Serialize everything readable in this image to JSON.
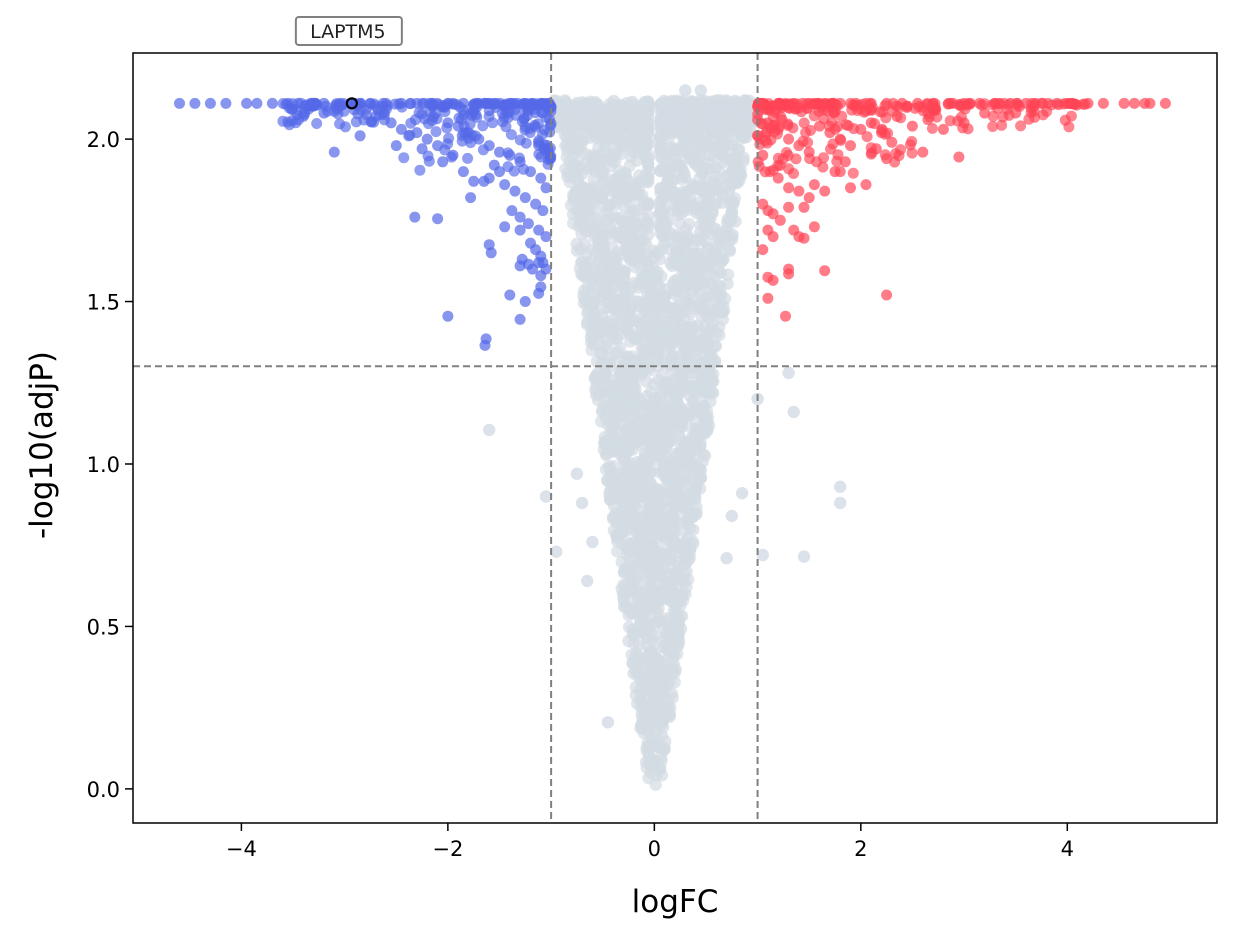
{
  "chart_data": {
    "type": "scatter",
    "subtype": "volcano",
    "xlabel": "logFC",
    "ylabel": "-log10(adjP)",
    "xlim": [
      -5.05,
      5.45
    ],
    "ylim": [
      -0.105,
      2.265
    ],
    "xticks": [
      -4,
      -2,
      0,
      2,
      4
    ],
    "xtick_labels": [
      "−4",
      "−2",
      "0",
      "2",
      "4"
    ],
    "yticks": [
      0.0,
      0.5,
      1.0,
      1.5,
      2.0
    ],
    "ytick_labels": [
      "0.0",
      "0.5",
      "1.0",
      "1.5",
      "2.0"
    ],
    "thresholds": {
      "logFC": [
        -1,
        1
      ],
      "neg_log10_adjP": 1.301
    },
    "colors": {
      "down": "#5468e8",
      "up": "#ff4455",
      "ns": "#d3dbe3",
      "threshold": "#808080"
    },
    "annotation": {
      "label": "LAPTM5",
      "x": -2.93,
      "y": 2.11
    },
    "series": [
      {
        "name": "down",
        "color": "#5468e8",
        "points": [
          [
            -4.6,
            2.11
          ],
          [
            -4.45,
            2.11
          ],
          [
            -4.3,
            2.11
          ],
          [
            -4.15,
            2.11
          ],
          [
            -3.95,
            2.11
          ],
          [
            -3.85,
            2.11
          ],
          [
            -3.7,
            2.11
          ],
          [
            -3.55,
            2.11
          ],
          [
            -3.45,
            2.11
          ],
          [
            -3.3,
            2.11
          ],
          [
            -3.2,
            2.11
          ],
          [
            -3.05,
            2.11
          ],
          [
            -2.9,
            2.11
          ],
          [
            -2.75,
            2.11
          ],
          [
            -2.6,
            2.11
          ],
          [
            -2.45,
            2.11
          ],
          [
            -2.3,
            2.11
          ],
          [
            -2.15,
            2.11
          ],
          [
            -2.0,
            2.11
          ],
          [
            -1.85,
            2.11
          ],
          [
            -1.7,
            2.11
          ],
          [
            -1.55,
            2.11
          ],
          [
            -1.4,
            2.11
          ],
          [
            -1.25,
            2.11
          ],
          [
            -1.1,
            2.11
          ],
          [
            -3.4,
            2.07
          ],
          [
            -3.2,
            2.08
          ],
          [
            -2.7,
            2.07
          ],
          [
            -2.55,
            2.05
          ],
          [
            -2.45,
            2.03
          ],
          [
            -2.3,
            2.02
          ],
          [
            -2.2,
            2.0
          ],
          [
            -2.1,
            1.98
          ],
          [
            -2.0,
            2.05
          ],
          [
            -1.9,
            2.04
          ],
          [
            -1.8,
            2.02
          ],
          [
            -1.7,
            2.0
          ],
          [
            -1.6,
            1.98
          ],
          [
            -1.5,
            1.96
          ],
          [
            -1.4,
            1.95
          ],
          [
            -1.3,
            1.93
          ],
          [
            -1.2,
            1.9
          ],
          [
            -1.1,
            1.88
          ],
          [
            -1.05,
            1.85
          ],
          [
            -3.1,
            1.96
          ],
          [
            -2.85,
            2.01
          ],
          [
            -2.5,
            1.98
          ],
          [
            -2.25,
            1.97
          ],
          [
            -2.05,
            1.93
          ],
          [
            -1.95,
            1.95
          ],
          [
            -1.85,
            1.9
          ],
          [
            -1.75,
            1.87
          ],
          [
            -1.65,
            1.87
          ],
          [
            -1.55,
            1.92
          ],
          [
            -1.45,
            1.86
          ],
          [
            -1.35,
            1.84
          ],
          [
            -1.25,
            1.82
          ],
          [
            -1.15,
            1.8
          ],
          [
            -1.08,
            1.78
          ],
          [
            -1.78,
            1.82
          ],
          [
            -1.6,
            1.88
          ],
          [
            -1.5,
            1.9
          ],
          [
            -1.38,
            1.78
          ],
          [
            -1.3,
            1.76
          ],
          [
            -1.22,
            1.74
          ],
          [
            -1.12,
            1.72
          ],
          [
            -1.05,
            1.7
          ],
          [
            -2.32,
            1.76
          ],
          [
            -2.1,
            1.755
          ],
          [
            -1.45,
            1.73
          ],
          [
            -1.3,
            1.72
          ],
          [
            -1.2,
            1.68
          ],
          [
            -1.15,
            1.66
          ],
          [
            -1.1,
            1.64
          ],
          [
            -1.08,
            1.62
          ],
          [
            -1.05,
            1.6
          ],
          [
            -1.6,
            1.675
          ],
          [
            -1.58,
            1.65
          ],
          [
            -1.28,
            1.63
          ],
          [
            -1.3,
            1.61
          ],
          [
            -1.22,
            1.615
          ],
          [
            -1.18,
            1.6
          ],
          [
            -1.12,
            1.62
          ],
          [
            -1.1,
            1.58
          ],
          [
            -1.1,
            1.545
          ],
          [
            -1.12,
            1.525
          ],
          [
            -1.4,
            1.52
          ],
          [
            -1.25,
            1.5
          ],
          [
            -2.0,
            1.455
          ],
          [
            -1.3,
            1.445
          ],
          [
            -1.63,
            1.385
          ],
          [
            -1.64,
            1.365
          ],
          [
            -2.93,
            2.11
          ]
        ]
      },
      {
        "name": "up",
        "color": "#ff4455",
        "points": [
          [
            1.05,
            2.11
          ],
          [
            1.2,
            2.11
          ],
          [
            1.35,
            2.11
          ],
          [
            1.5,
            2.11
          ],
          [
            1.65,
            2.11
          ],
          [
            1.8,
            2.11
          ],
          [
            1.95,
            2.11
          ],
          [
            2.1,
            2.11
          ],
          [
            2.25,
            2.11
          ],
          [
            2.4,
            2.11
          ],
          [
            2.55,
            2.11
          ],
          [
            2.7,
            2.11
          ],
          [
            2.85,
            2.11
          ],
          [
            3.0,
            2.11
          ],
          [
            3.15,
            2.11
          ],
          [
            3.3,
            2.11
          ],
          [
            3.45,
            2.11
          ],
          [
            3.6,
            2.11
          ],
          [
            3.75,
            2.11
          ],
          [
            3.9,
            2.11
          ],
          [
            4.05,
            2.11
          ],
          [
            4.2,
            2.11
          ],
          [
            4.35,
            2.11
          ],
          [
            4.55,
            2.11
          ],
          [
            4.65,
            2.11
          ],
          [
            4.75,
            2.11
          ],
          [
            4.8,
            2.11
          ],
          [
            4.95,
            2.11
          ],
          [
            1.1,
            2.05
          ],
          [
            1.2,
            2.03
          ],
          [
            1.3,
            2.0
          ],
          [
            1.4,
            1.98
          ],
          [
            1.5,
            1.96
          ],
          [
            1.6,
            2.04
          ],
          [
            1.7,
            2.02
          ],
          [
            1.8,
            2.0
          ],
          [
            1.9,
            1.98
          ],
          [
            2.0,
            2.03
          ],
          [
            2.1,
            2.05
          ],
          [
            2.2,
            2.02
          ],
          [
            2.35,
            2.07
          ],
          [
            2.5,
            2.04
          ],
          [
            2.65,
            2.06
          ],
          [
            2.8,
            2.03
          ],
          [
            3.0,
            2.05
          ],
          [
            3.2,
            2.08
          ],
          [
            3.5,
            2.08
          ],
          [
            1.05,
            1.95
          ],
          [
            1.12,
            1.9
          ],
          [
            1.2,
            1.88
          ],
          [
            1.3,
            1.85
          ],
          [
            1.4,
            1.84
          ],
          [
            1.55,
            1.86
          ],
          [
            1.65,
            1.84
          ],
          [
            1.75,
            1.9
          ],
          [
            1.85,
            1.93
          ],
          [
            1.9,
            1.85
          ],
          [
            2.05,
            1.86
          ],
          [
            2.15,
            1.97
          ],
          [
            2.25,
            1.94
          ],
          [
            2.3,
            1.99
          ],
          [
            2.6,
            1.96
          ],
          [
            2.95,
            1.945
          ],
          [
            1.05,
            1.8
          ],
          [
            1.1,
            1.78
          ],
          [
            1.15,
            1.77
          ],
          [
            1.22,
            1.75
          ],
          [
            1.3,
            1.79
          ],
          [
            1.45,
            1.79
          ],
          [
            1.5,
            1.82
          ],
          [
            1.8,
            1.9
          ],
          [
            1.1,
            1.72
          ],
          [
            1.15,
            1.7
          ],
          [
            1.35,
            1.72
          ],
          [
            1.4,
            1.7
          ],
          [
            1.45,
            1.695
          ],
          [
            1.55,
            1.73
          ],
          [
            1.05,
            1.66
          ],
          [
            1.1,
            1.575
          ],
          [
            1.15,
            1.565
          ],
          [
            1.1,
            1.51
          ],
          [
            1.3,
            1.6
          ],
          [
            1.3,
            1.585
          ],
          [
            1.65,
            1.595
          ],
          [
            1.27,
            1.455
          ],
          [
            2.25,
            1.52
          ]
        ]
      },
      {
        "name": "ns",
        "color": "#d3dbe3",
        "description": "non-significant points forming the central V-shaped cone"
      }
    ]
  }
}
